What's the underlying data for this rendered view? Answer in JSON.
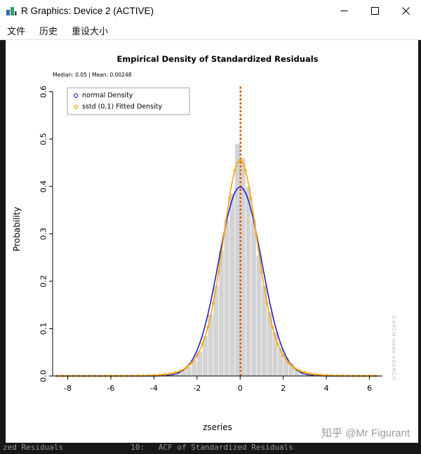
{
  "window": {
    "title": "R Graphics: Device 2 (ACTIVE)",
    "menu": [
      "文件",
      "历史",
      "重设大小"
    ]
  },
  "icons": [
    "app-icon",
    "minimize-icon",
    "maximize-icon",
    "close-icon"
  ],
  "watermark": "知乎 @Mr Figurant",
  "side_note": "GARCH mode  eGARCH",
  "background": {
    "bottom_left": "zed Residuals",
    "bottom_right": "10:   ACF of Standardized Residuals"
  },
  "chart_data": {
    "type": "histogram",
    "title": "Empirical Density of Standardized Residuals",
    "subtitle": "Median:  0.05 | Mean:  0.00248",
    "xlabel": "zseries",
    "ylabel": "Probability",
    "xlim": [
      -8.7,
      6.6
    ],
    "ylim": [
      0,
      0.62
    ],
    "xticks": [
      -8,
      -6,
      -4,
      -2,
      0,
      2,
      4,
      6
    ],
    "yticks": [
      0,
      0.1,
      0.2,
      0.3,
      0.4,
      0.5,
      0.6
    ],
    "grid": false,
    "legend_position": "top-left",
    "vlines": [
      {
        "x": 0.05,
        "label": "median",
        "color": "#ff8c00",
        "style": "dashed"
      },
      {
        "x": 0.00248,
        "label": "mean",
        "color": "#b22222",
        "style": "dashed"
      }
    ],
    "histogram": {
      "bin_width": 0.25,
      "color": "#d3d3d3",
      "centers": [
        -3.125,
        -2.875,
        -2.625,
        -2.375,
        -2.125,
        -1.875,
        -1.625,
        -1.375,
        -1.125,
        -0.875,
        -0.625,
        -0.375,
        -0.125,
        0.125,
        0.375,
        0.625,
        0.875,
        1.125,
        1.375,
        1.625,
        1.875,
        2.125,
        2.375,
        2.625,
        2.875,
        3.125,
        3.375
      ],
      "heights": [
        0.004,
        0.007,
        0.012,
        0.02,
        0.034,
        0.052,
        0.085,
        0.13,
        0.19,
        0.265,
        0.33,
        0.385,
        0.49,
        0.46,
        0.4,
        0.33,
        0.255,
        0.19,
        0.135,
        0.092,
        0.06,
        0.04,
        0.026,
        0.016,
        0.009,
        0.005,
        0.003
      ]
    },
    "series": [
      {
        "name": "normal Density",
        "color": "#2020c8",
        "marker": "circle",
        "type": "normal",
        "mean": 0,
        "sd": 1,
        "peak": 0.3989
      },
      {
        "name": "sstd (0,1) Fitted Density",
        "color": "#ffa500",
        "marker": "diamond",
        "type": "student_t_std",
        "nu": 7,
        "peak": 0.456
      }
    ]
  }
}
